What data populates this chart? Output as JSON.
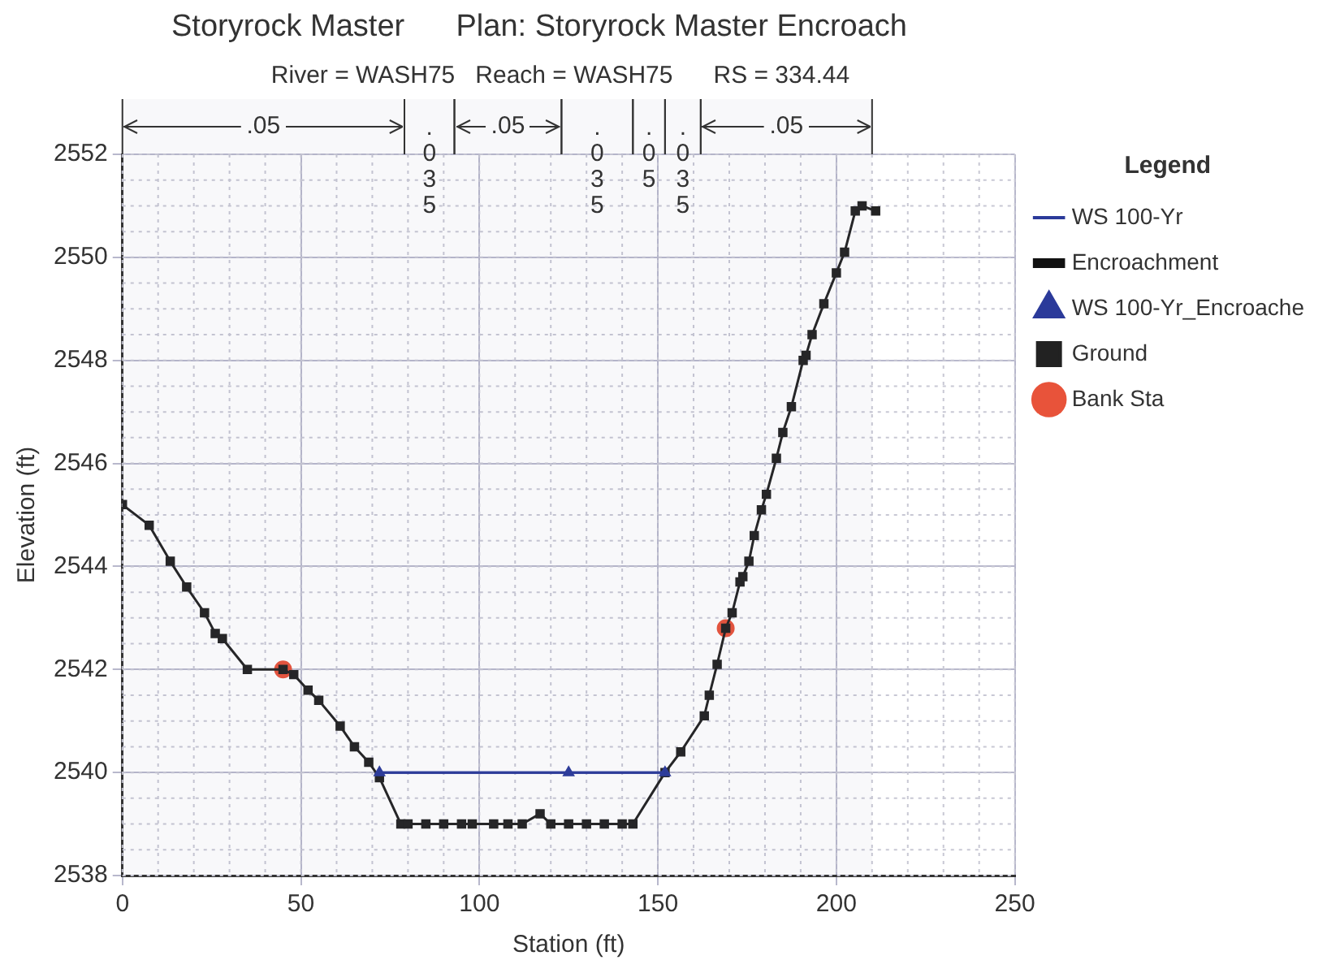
{
  "chart_data": {
    "type": "line",
    "title": "Storyrock Master      Plan: Storyrock Master Encroach",
    "subtitle": "River = WASH75   Reach = WASH75      RS = 334.44",
    "xlabel": "Station (ft)",
    "ylabel": "Elevation (ft)",
    "legend_title": "Legend",
    "legend": "right",
    "grid": true,
    "xlim": [
      0,
      250
    ],
    "xticks": [
      0,
      50,
      100,
      150,
      200,
      250
    ],
    "ylim": [
      2538,
      2552
    ],
    "yticks": [
      2538,
      2540,
      2542,
      2544,
      2546,
      2548,
      2550,
      2552
    ],
    "bands": [
      {
        "axis": "x",
        "from": 0,
        "to": 79,
        "label": ".05"
      },
      {
        "axis": "x",
        "from": 79,
        "to": 93,
        "label": ".035"
      },
      {
        "axis": "x",
        "from": 93,
        "to": 123,
        "label": ".05"
      },
      {
        "axis": "x",
        "from": 123,
        "to": 143,
        "label": ".035"
      },
      {
        "axis": "x",
        "from": 143,
        "to": 152,
        "label": ".05"
      },
      {
        "axis": "x",
        "from": 152,
        "to": 162,
        "label": ".035"
      },
      {
        "axis": "x",
        "from": 162,
        "to": 210,
        "label": ".05"
      }
    ],
    "series": [
      {
        "name": "WS 100-Yr_Encroache",
        "color": "#2b3a9a",
        "marker": "triangle",
        "line_style": "solid",
        "x": [
          72,
          125,
          152
        ],
        "values": [
          2540,
          2540,
          2540
        ]
      },
      {
        "name": "WS 100-Yr",
        "color": "#2b3a9a",
        "marker": "none",
        "line_style": "solid",
        "x": [
          72,
          152
        ],
        "values": [
          2540,
          2540
        ]
      },
      {
        "name": "Ground",
        "color": "#222222",
        "marker": "square",
        "line_style": "solid",
        "x": [
          0,
          7.5,
          13.4,
          18,
          23,
          26,
          28,
          35,
          45,
          48,
          52,
          55,
          61,
          65,
          69,
          72,
          78,
          80,
          85,
          90,
          95,
          98,
          104,
          108,
          112,
          117,
          120,
          125,
          130,
          135,
          140,
          143,
          152,
          156.4,
          163,
          164.4,
          166.6,
          169,
          170.8,
          173,
          173.8,
          175.5,
          177,
          179,
          180.4,
          183.2,
          185,
          187.4,
          190.7,
          191.5,
          193.2,
          196.5,
          200,
          202.3,
          205.3,
          207.2,
          211
        ],
        "values": [
          2545.2,
          2544.8,
          2544.1,
          2543.6,
          2543.1,
          2542.7,
          2542.6,
          2542,
          2542,
          2541.9,
          2541.6,
          2541.4,
          2540.9,
          2540.5,
          2540.2,
          2539.9,
          2539,
          2539,
          2539,
          2539,
          2539,
          2539,
          2539,
          2539,
          2539,
          2539.2,
          2539,
          2539,
          2539,
          2539,
          2539,
          2539,
          2540,
          2540.4,
          2541.1,
          2541.5,
          2542.1,
          2542.8,
          2543.1,
          2543.7,
          2543.8,
          2544.1,
          2544.6,
          2545.1,
          2545.4,
          2546.1,
          2546.6,
          2547.1,
          2548,
          2548.1,
          2548.5,
          2549.1,
          2549.7,
          2550.1,
          2550.9,
          2551,
          2550.9
        ]
      },
      {
        "name": "Bank Sta",
        "type": "scatter",
        "color": "#e8533a",
        "marker": "circle",
        "x": [
          45,
          169
        ],
        "values": [
          2542,
          2542.8
        ]
      },
      {
        "name": "Encroachment",
        "color": "#111111",
        "marker": "none",
        "line_style": "solid"
      }
    ]
  }
}
